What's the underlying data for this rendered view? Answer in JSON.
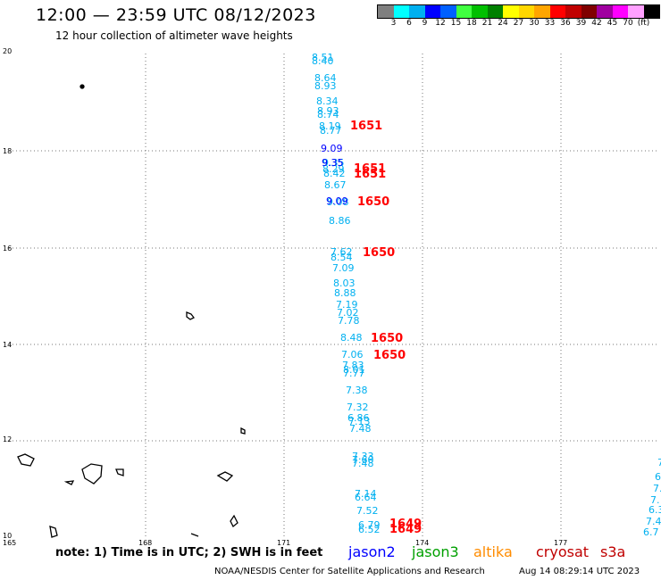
{
  "header": {
    "title": "12:00 — 23:59 UTC 08/12/2023",
    "subtitle": "12 hour collection of altimeter wave heights"
  },
  "colorbar": {
    "colors": [
      "#7f7f7f",
      "#00ffff",
      "#00b0f0",
      "#0000ff",
      "#0060ff",
      "#40ff40",
      "#00c000",
      "#008000",
      "#ffff00",
      "#ffd700",
      "#ffa500",
      "#ff0000",
      "#c00000",
      "#800000",
      "#a000a0",
      "#ff00ff",
      "#ffa0ff",
      "#000000"
    ],
    "labels": [
      "3",
      "6",
      "9",
      "12",
      "15",
      "18",
      "21",
      "24",
      "27",
      "30",
      "33",
      "36",
      "39",
      "42",
      "45",
      "70",
      "(ft)"
    ]
  },
  "axes": {
    "y_ticks": [
      "20",
      "18",
      "16",
      "14",
      "12",
      "10"
    ],
    "x_ticks": [
      "165",
      "168",
      "171",
      "174",
      "177"
    ]
  },
  "observations": {
    "jason3": [
      "8.51",
      "8.40",
      "8.64",
      "8.93",
      "8.34",
      "8.93",
      "8.74",
      "8.19",
      "8.77",
      "9.35",
      "8.29",
      "8.42",
      "8.67",
      "9.08",
      "8.86",
      "7.62",
      "8.54",
      "7.09",
      "8.03",
      "8.88",
      "7.19",
      "7.02",
      "7.78",
      "8.48",
      "7.06",
      "7.83",
      "8.01",
      "7.77",
      "7.38",
      "7.32",
      "6.86",
      "7.13",
      "7.48",
      "7.33",
      "7.60",
      "7.48",
      "7.14",
      "6.64",
      "7.52",
      "6.79",
      "6.52"
    ],
    "jason2": [
      "9.09",
      "9.35",
      "9.09"
    ],
    "edge": [
      "7",
      "6",
      "7.",
      "7.",
      "6.3",
      "7.4",
      "6.7"
    ],
    "times": [
      "1651",
      "1651",
      "1651",
      "1650",
      "1650",
      "1650",
      "1650",
      "1649",
      "1649"
    ]
  },
  "footer": {
    "note": "note: 1) Time is in UTC; 2) SWH is in feet",
    "legend": [
      {
        "label": "jason2",
        "color": "#0000ff"
      },
      {
        "label": "jason3",
        "color": "#00a000"
      },
      {
        "label": "altika",
        "color": "#ff8c00"
      },
      {
        "label": "cryosat",
        "color": "#c00000"
      },
      {
        "label": "s3a",
        "color": "#c00000"
      }
    ],
    "credit": "NOAA/NESDIS Center for Satellite Applications and Research",
    "timestamp": "Aug 14 08:29:14 UTC 2023"
  }
}
